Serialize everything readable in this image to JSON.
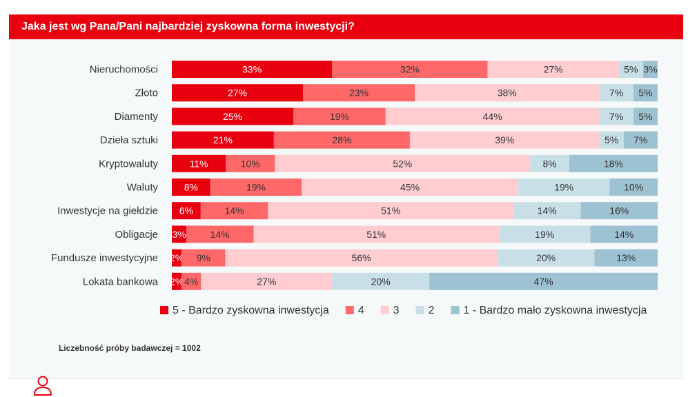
{
  "title": "Jaka jest wg Pana/Pani najbardziej zyskowna forma inwestycji?",
  "footer": {
    "sample_text": "Liczebność próby badawczej = 1002",
    "icon": "person-icon"
  },
  "colors": {
    "header": "#e8000e",
    "s5": "#e8000e",
    "s4": "#fe6868",
    "s3": "#ffcdcf",
    "s2": "#c8dfe7",
    "s1": "#9dc2d1"
  },
  "chart_data": {
    "type": "bar",
    "orientation": "horizontal",
    "stacked": true,
    "percent": true,
    "categories": [
      "Nieruchomości",
      "Złoto",
      "Diamenty",
      "Dzieła sztuki",
      "Kryptowaluty",
      "Waluty",
      "Inwestycje na giełdzie",
      "Obligacje",
      "Fundusze inwestycyjne",
      "Lokata bankowa"
    ],
    "series": [
      {
        "name": "5 - Bardzo zyskowna inwestycja",
        "color": "#e8000e",
        "label_color": "#ffffff",
        "values": [
          33,
          27,
          25,
          21,
          11,
          8,
          6,
          3,
          2,
          2
        ]
      },
      {
        "name": "4",
        "color": "#fe6868",
        "label_color": "#333333",
        "values": [
          32,
          23,
          19,
          28,
          10,
          19,
          14,
          14,
          9,
          4
        ]
      },
      {
        "name": "3",
        "color": "#ffcdcf",
        "label_color": "#333333",
        "values": [
          27,
          38,
          44,
          39,
          52,
          45,
          51,
          51,
          56,
          27
        ]
      },
      {
        "name": "2",
        "color": "#c8dfe7",
        "label_color": "#333333",
        "values": [
          5,
          7,
          7,
          5,
          8,
          19,
          14,
          19,
          20,
          20
        ]
      },
      {
        "name": "1 - Bardzo mało zyskowna inwestycja",
        "color": "#9dc2d1",
        "label_color": "#333333",
        "values": [
          3,
          5,
          5,
          7,
          18,
          10,
          16,
          14,
          13,
          47
        ]
      }
    ],
    "legend_position": "bottom",
    "value_suffix": "%"
  }
}
